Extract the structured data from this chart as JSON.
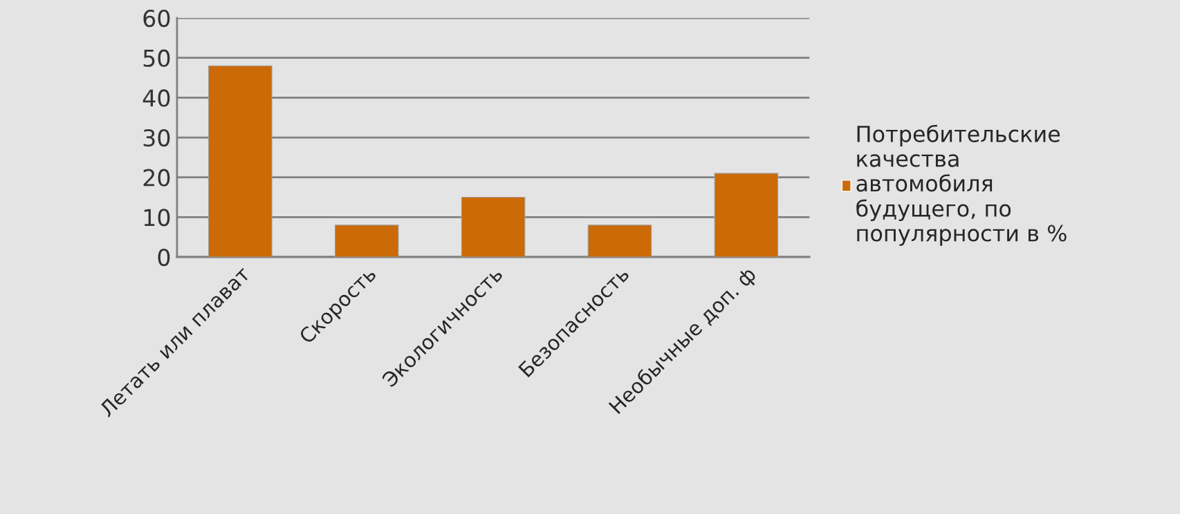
{
  "chart_data": {
    "type": "bar",
    "categories": [
      "Летать или плават",
      "Скорость",
      "Экологичность",
      "Безопасность",
      "Необычные доп. ф"
    ],
    "series": [
      {
        "name": "Потребительские\nкачества\nавтомобиля\nбудущего, по\nпопулярности в %",
        "color": "#cc6a08",
        "values": [
          48,
          8,
          15,
          8,
          21
        ]
      }
    ],
    "ylim": [
      0,
      60
    ],
    "yticks": [
      0,
      10,
      20,
      30,
      40,
      50,
      60
    ],
    "grid": "y",
    "legend": "right"
  }
}
